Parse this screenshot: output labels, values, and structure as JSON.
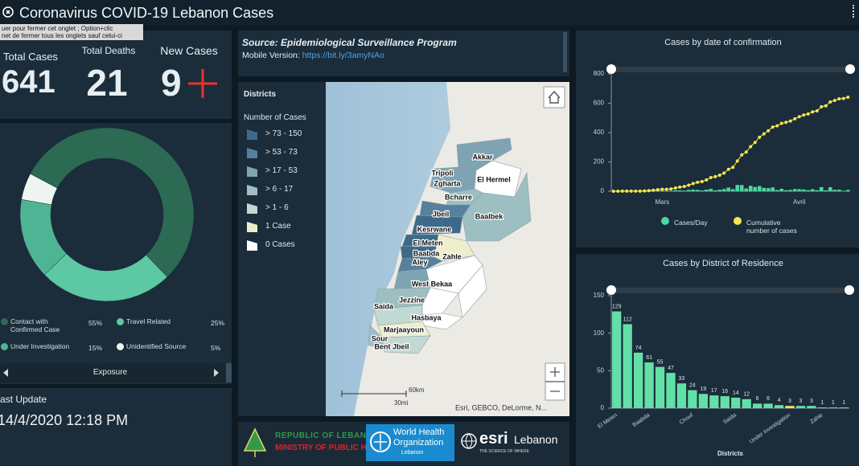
{
  "header": {
    "title": "Coronavirus COVID-19 Lebanon Cases",
    "tooltip": [
      "uer pour fermer cet onglet ; Option+clic",
      "net de fermer tous les onglets sauf celui-ci"
    ]
  },
  "stats": [
    {
      "label": "Total Cases",
      "value": 641
    },
    {
      "label": "Total Deaths",
      "value": 21
    },
    {
      "label": "New Cases",
      "value": 9
    }
  ],
  "exposure": {
    "type": "pie",
    "title": "Exposure",
    "categories": [
      "Contact with Confirmed Case",
      "Travel Related",
      "Under Investigation",
      "Unidentified Source"
    ],
    "values": [
      55,
      25,
      15,
      5
    ],
    "value_labels": [
      "55%",
      "25%",
      "15%",
      "5%"
    ],
    "colors": [
      "#2c6a53",
      "#5cc8a4",
      "#4fb493",
      "#eef5f2"
    ]
  },
  "last_update": {
    "label": "ast Update",
    "value": "14/4/2020 12:18 PM"
  },
  "source": {
    "title": "Source: Epidemiological Surveillance Program",
    "mobile_label": "Mobile Version:",
    "link": "https://bit.ly/3amyNAo"
  },
  "map": {
    "legend_title": "Districts",
    "legend_subtitle": "Number of Cases",
    "legend": [
      {
        "label": "> 73 - 150",
        "color": "#3d6a8a"
      },
      {
        "label": "> 53 - 73",
        "color": "#56809c"
      },
      {
        "label": "> 17 - 53",
        "color": "#7ea4b4"
      },
      {
        "label": "> 6 - 17",
        "color": "#9dbfc2"
      },
      {
        "label": "> 1 - 6",
        "color": "#c2d9d3"
      },
      {
        "label": "1 Case",
        "color": "#eeeecc"
      },
      {
        "label": "0 Cases",
        "color": "#ffffff"
      }
    ],
    "districts": [
      "Akkar",
      "Tripoli",
      "Zgharta",
      "El Hermel",
      "Bcharre",
      "Jbeil",
      "Baalbek",
      "Kesrwane",
      "El Meten",
      "Baabda",
      "Zahle",
      "Aley",
      "West Bekaa",
      "Saida",
      "Jezzine",
      "Hasbaya",
      "Marjaayoun",
      "Sour",
      "Bent Jbeil"
    ],
    "scale": [
      "60km",
      "30mi"
    ],
    "attribution": "Esri, GEBCO, DeLorme, N..."
  },
  "logos": {
    "moph": [
      "REPUBLIC OF LEBANON",
      "MINISTRY OF PUBLIC HEALTH"
    ],
    "who": [
      "World Health",
      "Organization",
      "Lebanon"
    ],
    "esri": [
      "esri",
      "Lebanon",
      "THE SCIENCE OF WHERE"
    ]
  },
  "chart_data": [
    {
      "type": "combo",
      "title": "Cases by  date of confirmation",
      "categories": [
        null,
        null,
        null,
        null,
        null,
        null,
        null,
        null,
        null,
        null,
        null,
        "Mars",
        null,
        null,
        null,
        null,
        null,
        null,
        null,
        null,
        null,
        null,
        null,
        null,
        null,
        null,
        null,
        null,
        null,
        null,
        null,
        null,
        null,
        null,
        null,
        null,
        null,
        null,
        null,
        null,
        null,
        null,
        "Avril",
        null,
        null,
        null,
        null,
        null,
        null,
        null,
        null,
        null,
        null,
        null
      ],
      "series": [
        {
          "name": "Cases/Day",
          "color": "#4fd6a2",
          "type": "bar",
          "values": [
            0,
            0,
            1,
            0,
            0,
            0,
            0,
            1,
            2,
            3,
            3,
            3,
            0,
            3,
            6,
            6,
            4,
            9,
            11,
            9,
            5,
            11,
            16,
            6,
            10,
            15,
            25,
            14,
            43,
            42,
            19,
            37,
            29,
            35,
            23,
            21,
            26,
            8,
            17,
            7,
            9,
            15,
            14,
            12,
            7,
            14,
            7,
            28,
            6,
            27,
            10,
            11,
            2,
            9
          ]
        },
        {
          "name": "Cumulative number of cases",
          "color": "#f3e64f",
          "type": "line",
          "values": [
            0,
            0,
            1,
            1,
            1,
            1,
            1,
            2,
            4,
            7,
            10,
            13,
            13,
            16,
            22,
            28,
            32,
            41,
            52,
            61,
            66,
            77,
            93,
            99,
            109,
            124,
            149,
            163,
            206,
            248,
            267,
            304,
            333,
            368,
            391,
            412,
            438,
            446,
            463,
            470,
            479,
            494,
            508,
            520,
            527,
            541,
            548,
            576,
            582,
            609,
            619,
            630,
            632,
            641
          ]
        }
      ],
      "ylim": [
        0,
        800
      ],
      "yticks": [
        0,
        200,
        400,
        600,
        800
      ]
    },
    {
      "type": "bar",
      "title": "Cases by District of Residence",
      "xlabel": "Districts",
      "categories": [
        "El Meten",
        null,
        null,
        "Baabda",
        null,
        null,
        null,
        "Chouf",
        null,
        null,
        null,
        "Saida",
        null,
        null,
        null,
        null,
        "Under Investigation",
        null,
        null,
        "Zahle",
        null,
        null
      ],
      "values": [
        129,
        112,
        74,
        61,
        55,
        47,
        33,
        24,
        19,
        17,
        16,
        14,
        12,
        6,
        6,
        4,
        3,
        3,
        3,
        1,
        1,
        1
      ],
      "colors": [
        "#63e0a8",
        "#63e0a8",
        "#63e0a8",
        "#63e0a8",
        "#63e0a8",
        "#63e0a8",
        "#63e0a8",
        "#63e0a8",
        "#63e0a8",
        "#63e0a8",
        "#63e0a8",
        "#63e0a8",
        "#63e0a8",
        "#63e0a8",
        "#63e0a8",
        "#63e0a8",
        "#f2e35d",
        "#63e0a8",
        "#63e0a8",
        "#63e0a8",
        "#63e0a8",
        "#63e0a8"
      ],
      "ylim": [
        0,
        150
      ],
      "yticks": [
        0,
        50,
        100,
        150
      ]
    }
  ]
}
